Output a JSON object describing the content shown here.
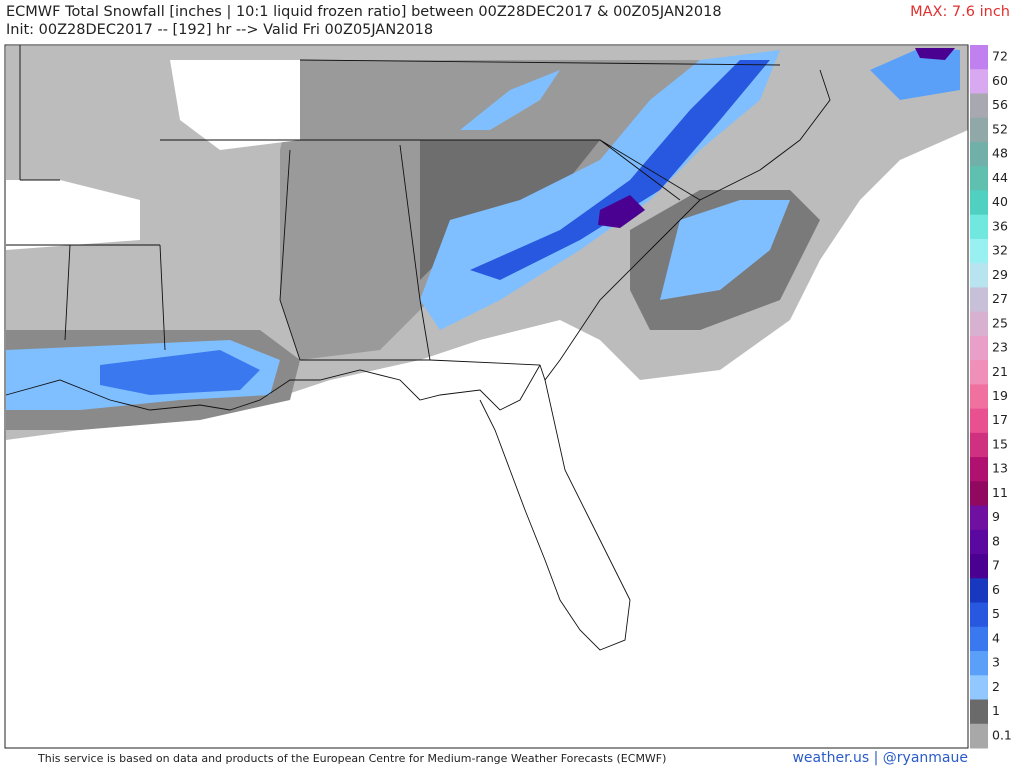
{
  "header": {
    "title": "ECMWF Total Snowfall [inches | 10:1 liquid frozen ratio] between 00Z28DEC2017 & 00Z05JAN2018",
    "subtitle": "Init: 00Z28DEC2017 -- [192] hr --> Valid Fri 00Z05JAN2018",
    "max_label": "MAX: 7.6 inch"
  },
  "colorbar": {
    "labels": [
      "72",
      "60",
      "56",
      "52",
      "48",
      "44",
      "40",
      "36",
      "32",
      "29",
      "27",
      "25",
      "23",
      "21",
      "19",
      "17",
      "15",
      "13",
      "11",
      "9",
      "8",
      "7",
      "6",
      "5",
      "4",
      "3",
      "2",
      "1",
      "0.1"
    ],
    "colors": [
      "#c080f0",
      "#d8a8f0",
      "#a8a8b0",
      "#90a8a8",
      "#70b0a8",
      "#60c0b0",
      "#50d0c0",
      "#70e8e0",
      "#98f0f0",
      "#b8e4f0",
      "#c8c0d8",
      "#d8b0d0",
      "#e8a0c8",
      "#f090b8",
      "#f070a0",
      "#e85090",
      "#d03080",
      "#b01070",
      "#900860",
      "#7010a0",
      "#5a08a0",
      "#4a0090",
      "#1838c0",
      "#2858e0",
      "#3a78f0",
      "#5aa0f8",
      "#90c8ff",
      "#6a6a6a",
      "#a8a8a8"
    ]
  },
  "footer": {
    "disclaimer": "This service is based on data and products of the European Centre for Medium-range Weather Forecasts (ECMWF)",
    "credit": "weather.us | @ryanmaue"
  }
}
